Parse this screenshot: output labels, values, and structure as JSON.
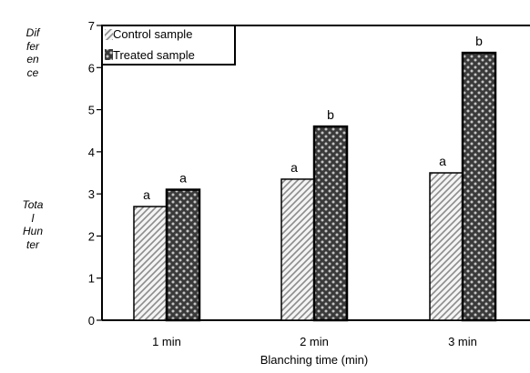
{
  "chart_data": {
    "type": "bar",
    "title": "",
    "xlabel": "Blanching time (min)",
    "ylabel_lines": [
      "Dif",
      "fer",
      "en",
      "ce",
      "Tota",
      "l",
      "Hun",
      "ter"
    ],
    "categories": [
      "1 min",
      "2 min",
      "3 min"
    ],
    "ylim": [
      0,
      7
    ],
    "yticks": [
      0,
      1,
      2,
      3,
      4,
      5,
      6,
      7
    ],
    "grid": false,
    "legend_position": "top-left",
    "series": [
      {
        "name": "Control sample",
        "values": [
          2.7,
          3.35,
          3.5
        ],
        "labels": [
          "a",
          "a",
          "a"
        ],
        "pattern": "diagonal-hatch",
        "color": "#9a9a9a"
      },
      {
        "name": "Treated sample",
        "values": [
          3.1,
          4.6,
          6.35
        ],
        "labels": [
          "a",
          "b",
          "b"
        ],
        "pattern": "dark-checker",
        "color": "#2a2a2a"
      }
    ]
  }
}
